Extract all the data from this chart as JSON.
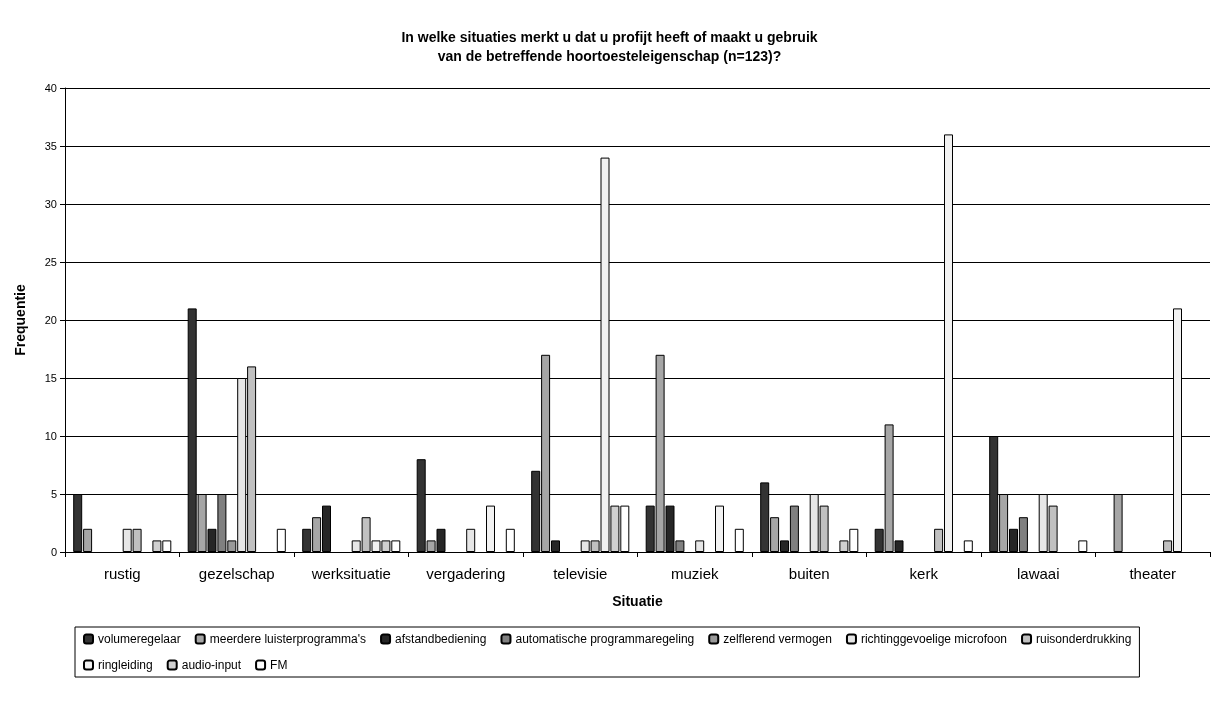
{
  "chart_data": {
    "type": "bar",
    "title": "In welke situaties merkt u dat u profijt heeft of maakt u gebruik\nvan de betreffende hoortoesteleigenschap (n=123)?",
    "xlabel": "Situatie",
    "ylabel": "Frequentie",
    "categories": [
      "rustig",
      "gezelschap",
      "werksituatie",
      "vergadering",
      "televisie",
      "muziek",
      "buiten",
      "kerk",
      "lawaai",
      "theater"
    ],
    "series": [
      {
        "name": "volumeregelaar",
        "color": "#333333",
        "values": [
          5,
          21,
          2,
          8,
          7,
          4,
          6,
          2,
          10,
          0
        ]
      },
      {
        "name": "meerdere luisterprogramma's",
        "color": "#a6a6a6",
        "values": [
          2,
          5,
          3,
          1,
          17,
          17,
          3,
          11,
          5,
          5
        ]
      },
      {
        "name": "afstandbediening",
        "color": "#262626",
        "values": [
          0,
          2,
          4,
          2,
          1,
          4,
          1,
          1,
          2,
          0
        ]
      },
      {
        "name": "automatische programmaregeling",
        "color": "#808080",
        "values": [
          0,
          5,
          0,
          0,
          0,
          1,
          4,
          0,
          3,
          0
        ]
      },
      {
        "name": "zelflerend vermogen",
        "color": "#999999",
        "values": [
          0,
          1,
          0,
          0,
          0,
          0,
          0,
          0,
          0,
          0
        ]
      },
      {
        "name": "richtinggevoelige microfoon",
        "color": "#e6e6e6",
        "values": [
          2,
          15,
          1,
          2,
          1,
          1,
          5,
          0,
          5,
          0
        ]
      },
      {
        "name": "ruisonderdrukking",
        "color": "#c0c0c0",
        "values": [
          2,
          16,
          3,
          0,
          1,
          0,
          4,
          2,
          4,
          1
        ]
      },
      {
        "name": "ringleiding",
        "color": "#f2f2f2",
        "values": [
          0,
          0,
          1,
          4,
          34,
          4,
          0,
          36,
          0,
          21
        ]
      },
      {
        "name": "audio-input",
        "color": "#d0d0d0",
        "values": [
          1,
          0,
          1,
          0,
          4,
          0,
          1,
          0,
          0,
          0
        ]
      },
      {
        "name": "FM",
        "color": "#ffffff",
        "values": [
          1,
          2,
          1,
          2,
          4,
          2,
          2,
          1,
          1,
          0
        ]
      }
    ],
    "ylim": [
      0,
      40
    ],
    "yticks": [
      0,
      5,
      10,
      15,
      20,
      25,
      30,
      35,
      40
    ],
    "grid": "y",
    "legend": "bottom"
  }
}
